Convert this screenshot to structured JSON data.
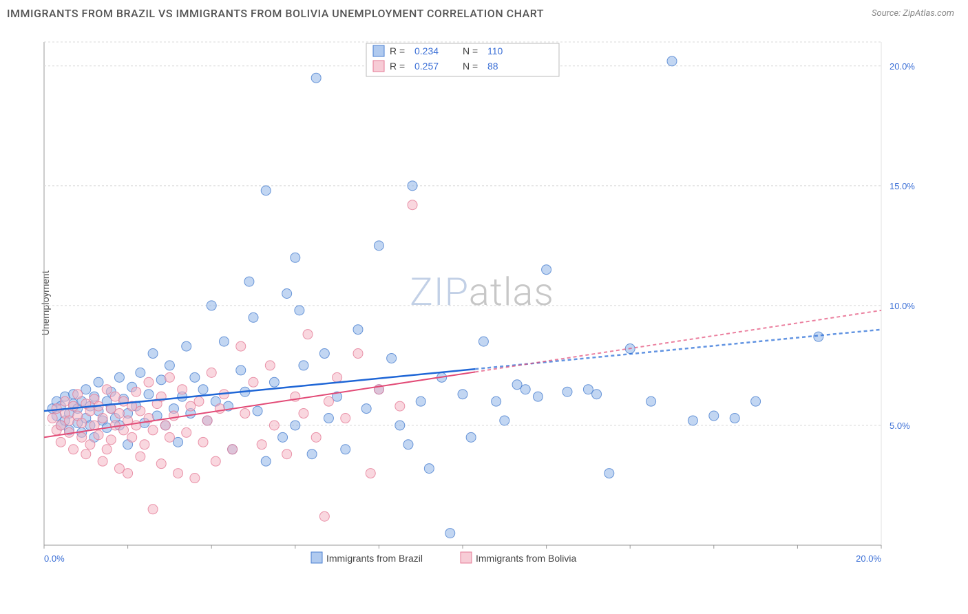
{
  "header": {
    "title": "IMMIGRANTS FROM BRAZIL VS IMMIGRANTS FROM BOLIVIA UNEMPLOYMENT CORRELATION CHART",
    "source": "Source: ZipAtlas.com"
  },
  "watermark": {
    "part1": "ZIP",
    "part2": "atlas"
  },
  "chart": {
    "type": "scatter",
    "ylabel": "Unemployment",
    "background_color": "#ffffff",
    "grid_color": "#d8d8d8",
    "grid_dash": "3,3",
    "axis_color": "#999999",
    "xlim": [
      0,
      20
    ],
    "ylim": [
      0,
      21
    ],
    "xticks": [
      0,
      20
    ],
    "xtick_labels": [
      "0.0%",
      "20.0%"
    ],
    "yticks": [
      5,
      10,
      15,
      20
    ],
    "ytick_labels": [
      "5.0%",
      "10.0%",
      "15.0%",
      "20.0%"
    ],
    "axis_label_color": "#3b6fd6",
    "axis_label_fontsize": 13,
    "marker_radius": 7,
    "marker_opacity": 0.55,
    "marker_stroke_width": 1,
    "series": [
      {
        "id": "brazil",
        "label": "Immigrants from Brazil",
        "fill_color": "#8fb4e8",
        "stroke_color": "#4a7fd0",
        "trend_color": "#1f66d6",
        "trend_width": 2.5,
        "trend_dash_segment": 10.3,
        "R": "0.234",
        "N": "110",
        "trend": {
          "x1": 0,
          "y1": 5.6,
          "x2": 20,
          "y2": 9.0
        },
        "points": [
          [
            0.2,
            5.7
          ],
          [
            0.3,
            5.4
          ],
          [
            0.3,
            6.0
          ],
          [
            0.4,
            5.0
          ],
          [
            0.4,
            5.8
          ],
          [
            0.5,
            5.2
          ],
          [
            0.5,
            6.2
          ],
          [
            0.6,
            5.5
          ],
          [
            0.6,
            4.8
          ],
          [
            0.7,
            5.9
          ],
          [
            0.7,
            6.3
          ],
          [
            0.8,
            5.1
          ],
          [
            0.8,
            5.7
          ],
          [
            0.9,
            4.7
          ],
          [
            0.9,
            6.0
          ],
          [
            1.0,
            5.3
          ],
          [
            1.0,
            6.5
          ],
          [
            1.1,
            5.0
          ],
          [
            1.1,
            5.8
          ],
          [
            1.2,
            6.2
          ],
          [
            1.2,
            4.5
          ],
          [
            1.3,
            5.6
          ],
          [
            1.3,
            6.8
          ],
          [
            1.4,
            5.2
          ],
          [
            1.5,
            6.0
          ],
          [
            1.5,
            4.9
          ],
          [
            1.6,
            5.7
          ],
          [
            1.6,
            6.4
          ],
          [
            1.7,
            5.3
          ],
          [
            1.8,
            7.0
          ],
          [
            1.8,
            5.0
          ],
          [
            1.9,
            6.1
          ],
          [
            2.0,
            5.5
          ],
          [
            2.0,
            4.2
          ],
          [
            2.1,
            6.6
          ],
          [
            2.2,
            5.8
          ],
          [
            2.3,
            7.2
          ],
          [
            2.4,
            5.1
          ],
          [
            2.5,
            6.3
          ],
          [
            2.6,
            8.0
          ],
          [
            2.7,
            5.4
          ],
          [
            2.8,
            6.9
          ],
          [
            2.9,
            5.0
          ],
          [
            3.0,
            7.5
          ],
          [
            3.1,
            5.7
          ],
          [
            3.2,
            4.3
          ],
          [
            3.3,
            6.2
          ],
          [
            3.4,
            8.3
          ],
          [
            3.5,
            5.5
          ],
          [
            3.6,
            7.0
          ],
          [
            3.8,
            6.5
          ],
          [
            3.9,
            5.2
          ],
          [
            4.0,
            10.0
          ],
          [
            4.1,
            6.0
          ],
          [
            4.3,
            8.5
          ],
          [
            4.4,
            5.8
          ],
          [
            4.5,
            4.0
          ],
          [
            4.7,
            7.3
          ],
          [
            4.8,
            6.4
          ],
          [
            5.0,
            9.5
          ],
          [
            5.1,
            5.6
          ],
          [
            5.3,
            3.5
          ],
          [
            5.5,
            6.8
          ],
          [
            5.7,
            4.5
          ],
          [
            5.8,
            10.5
          ],
          [
            6.0,
            12.0
          ],
          [
            6.0,
            5.0
          ],
          [
            6.2,
            7.5
          ],
          [
            6.4,
            3.8
          ],
          [
            6.5,
            19.5
          ],
          [
            6.7,
            8.0
          ],
          [
            6.8,
            5.3
          ],
          [
            7.0,
            6.2
          ],
          [
            7.2,
            4.0
          ],
          [
            7.5,
            9.0
          ],
          [
            7.7,
            5.7
          ],
          [
            8.0,
            6.5
          ],
          [
            8.0,
            12.5
          ],
          [
            8.3,
            7.8
          ],
          [
            8.5,
            5.0
          ],
          [
            8.7,
            4.2
          ],
          [
            8.8,
            15.0
          ],
          [
            9.0,
            6.0
          ],
          [
            9.2,
            3.2
          ],
          [
            9.5,
            7.0
          ],
          [
            9.7,
            0.5
          ],
          [
            10.0,
            6.3
          ],
          [
            10.2,
            4.5
          ],
          [
            10.5,
            8.5
          ],
          [
            10.8,
            6.0
          ],
          [
            11.0,
            5.2
          ],
          [
            11.3,
            6.7
          ],
          [
            11.5,
            6.5
          ],
          [
            11.8,
            6.2
          ],
          [
            12.0,
            11.5
          ],
          [
            12.5,
            6.4
          ],
          [
            13.0,
            6.5
          ],
          [
            13.2,
            6.3
          ],
          [
            13.5,
            3.0
          ],
          [
            14.0,
            8.2
          ],
          [
            14.5,
            6.0
          ],
          [
            15.0,
            20.2
          ],
          [
            15.5,
            5.2
          ],
          [
            16.0,
            5.4
          ],
          [
            16.5,
            5.3
          ],
          [
            17.0,
            6.0
          ],
          [
            5.3,
            14.8
          ],
          [
            4.9,
            11.0
          ],
          [
            6.1,
            9.8
          ],
          [
            18.5,
            8.7
          ]
        ]
      },
      {
        "id": "bolivia",
        "label": "Immigrants from Bolivia",
        "fill_color": "#f4b6c4",
        "stroke_color": "#e57a96",
        "trend_color": "#e24a76",
        "trend_width": 2,
        "trend_dash_segment": 10.3,
        "R": "0.257",
        "N": "88",
        "trend": {
          "x1": 0,
          "y1": 4.5,
          "x2": 20,
          "y2": 9.8
        },
        "points": [
          [
            0.2,
            5.3
          ],
          [
            0.3,
            4.8
          ],
          [
            0.3,
            5.7
          ],
          [
            0.4,
            5.0
          ],
          [
            0.4,
            4.3
          ],
          [
            0.5,
            5.5
          ],
          [
            0.5,
            6.0
          ],
          [
            0.6,
            4.7
          ],
          [
            0.6,
            5.2
          ],
          [
            0.7,
            5.8
          ],
          [
            0.7,
            4.0
          ],
          [
            0.8,
            5.4
          ],
          [
            0.8,
            6.3
          ],
          [
            0.9,
            4.5
          ],
          [
            0.9,
            5.1
          ],
          [
            1.0,
            5.9
          ],
          [
            1.0,
            3.8
          ],
          [
            1.1,
            5.6
          ],
          [
            1.1,
            4.2
          ],
          [
            1.2,
            6.1
          ],
          [
            1.2,
            5.0
          ],
          [
            1.3,
            4.6
          ],
          [
            1.3,
            5.8
          ],
          [
            1.4,
            3.5
          ],
          [
            1.4,
            5.3
          ],
          [
            1.5,
            6.5
          ],
          [
            1.5,
            4.0
          ],
          [
            1.6,
            5.7
          ],
          [
            1.6,
            4.4
          ],
          [
            1.7,
            5.0
          ],
          [
            1.7,
            6.2
          ],
          [
            1.8,
            3.2
          ],
          [
            1.8,
            5.5
          ],
          [
            1.9,
            4.8
          ],
          [
            1.9,
            6.0
          ],
          [
            2.0,
            5.2
          ],
          [
            2.0,
            3.0
          ],
          [
            2.1,
            5.8
          ],
          [
            2.1,
            4.5
          ],
          [
            2.2,
            6.4
          ],
          [
            2.2,
            5.0
          ],
          [
            2.3,
            3.7
          ],
          [
            2.3,
            5.6
          ],
          [
            2.4,
            4.2
          ],
          [
            2.5,
            6.8
          ],
          [
            2.5,
            5.3
          ],
          [
            2.6,
            1.5
          ],
          [
            2.6,
            4.8
          ],
          [
            2.7,
            5.9
          ],
          [
            2.8,
            3.4
          ],
          [
            2.8,
            6.2
          ],
          [
            2.9,
            5.0
          ],
          [
            3.0,
            4.5
          ],
          [
            3.0,
            7.0
          ],
          [
            3.1,
            5.4
          ],
          [
            3.2,
            3.0
          ],
          [
            3.3,
            6.5
          ],
          [
            3.4,
            4.7
          ],
          [
            3.5,
            5.8
          ],
          [
            3.6,
            2.8
          ],
          [
            3.7,
            6.0
          ],
          [
            3.8,
            4.3
          ],
          [
            3.9,
            5.2
          ],
          [
            4.0,
            7.2
          ],
          [
            4.1,
            3.5
          ],
          [
            4.2,
            5.7
          ],
          [
            4.3,
            6.3
          ],
          [
            4.5,
            4.0
          ],
          [
            4.7,
            8.3
          ],
          [
            4.8,
            5.5
          ],
          [
            5.0,
            6.8
          ],
          [
            5.2,
            4.2
          ],
          [
            5.4,
            7.5
          ],
          [
            5.5,
            5.0
          ],
          [
            5.8,
            3.8
          ],
          [
            6.0,
            6.2
          ],
          [
            6.2,
            5.5
          ],
          [
            6.3,
            8.8
          ],
          [
            6.5,
            4.5
          ],
          [
            6.7,
            1.2
          ],
          [
            6.8,
            6.0
          ],
          [
            7.0,
            7.0
          ],
          [
            7.2,
            5.3
          ],
          [
            7.5,
            8.0
          ],
          [
            7.8,
            3.0
          ],
          [
            8.0,
            6.5
          ],
          [
            8.5,
            5.8
          ],
          [
            8.8,
            14.2
          ]
        ]
      }
    ],
    "legend_bottom": [
      {
        "series_ref": "brazil"
      },
      {
        "series_ref": "bolivia"
      }
    ]
  }
}
